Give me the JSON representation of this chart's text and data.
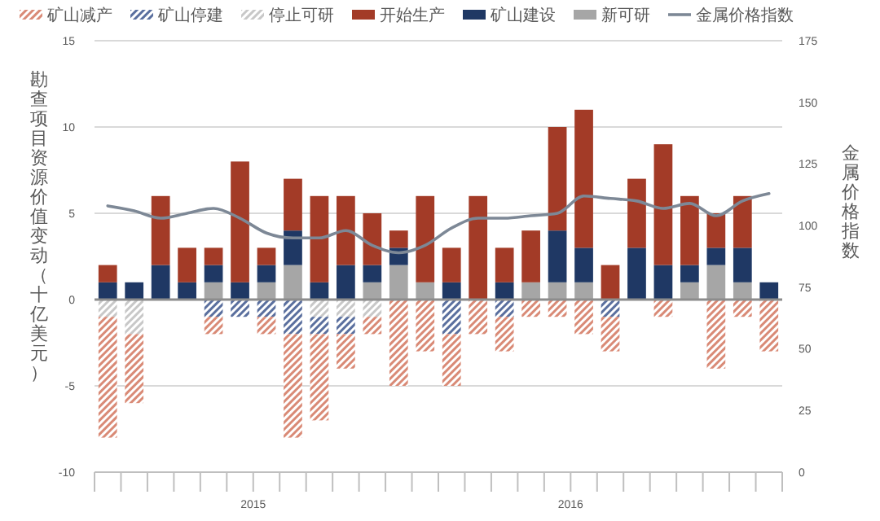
{
  "chart_data": {
    "type": "bar",
    "stacked": true,
    "ylabel": "勘查项目资源价值变动（十亿美元）",
    "y2label": "金属价格指数",
    "categories": [
      null,
      null,
      null,
      null,
      null,
      null,
      null,
      null,
      null,
      null,
      null,
      null,
      null,
      null,
      null,
      null,
      null,
      null,
      null,
      null,
      null,
      null,
      null,
      null,
      null,
      null
    ],
    "annotations": [
      "2015",
      "2016"
    ],
    "ylim": [
      -10,
      15
    ],
    "yticks": [
      -10,
      -5,
      0,
      5,
      10,
      15
    ],
    "y2lim": [
      0,
      175
    ],
    "y2ticks": [
      0,
      25,
      50,
      75,
      100,
      125,
      150,
      175
    ],
    "grid": "y",
    "legend": "top",
    "series": [
      {
        "name": "新可研",
        "color": "#a6a6a6",
        "values": [
          null,
          null,
          null,
          null,
          1,
          null,
          1,
          2,
          null,
          null,
          1,
          2,
          1,
          null,
          null,
          null,
          1,
          1,
          1,
          null,
          null,
          null,
          1,
          2,
          1,
          null
        ]
      },
      {
        "name": "矿山建设",
        "color": "#1f3864",
        "values": [
          1,
          1,
          2,
          1,
          1,
          1,
          1,
          2,
          1,
          2,
          1,
          1,
          null,
          1,
          null,
          1,
          null,
          3,
          2,
          null,
          3,
          2,
          1,
          1,
          2,
          1
        ]
      },
      {
        "name": "开始生产",
        "color": "#a33b27",
        "values": [
          1,
          null,
          4,
          2,
          1,
          7,
          1,
          3,
          5,
          4,
          3,
          1,
          5,
          2,
          6,
          2,
          3,
          6,
          8,
          2,
          4,
          7,
          4,
          2,
          3,
          null
        ]
      },
      {
        "name": "停止可研",
        "color": "#c8c8c8",
        "values": [
          -1,
          -2,
          null,
          null,
          null,
          null,
          null,
          null,
          -1,
          -1,
          -1,
          null,
          null,
          null,
          null,
          null,
          null,
          null,
          null,
          null,
          null,
          null,
          null,
          null,
          null,
          null
        ]
      },
      {
        "name": "矿山停建",
        "color": "#5a6f9e",
        "values": [
          null,
          null,
          null,
          null,
          -1,
          -1,
          -1,
          -2,
          -1,
          -1,
          null,
          null,
          null,
          -2,
          null,
          -1,
          null,
          null,
          null,
          -1,
          null,
          null,
          null,
          null,
          null,
          null
        ]
      },
      {
        "name": "矿山减产",
        "color": "#d98a76",
        "values": [
          -7,
          -4,
          null,
          null,
          -1,
          null,
          -1,
          -6,
          -5,
          -2,
          -1,
          -5,
          -3,
          -3,
          -2,
          -2,
          -1,
          -1,
          -2,
          -2,
          null,
          -1,
          null,
          -4,
          -1,
          -3
        ]
      },
      {
        "name": "金属价格指数",
        "type": "line",
        "axis": "y2",
        "color": "#7d8896",
        "values": [
          108,
          106,
          103,
          105,
          107,
          103,
          97,
          95,
          95,
          98,
          92,
          89,
          92,
          99,
          103,
          103,
          104,
          105,
          112,
          111,
          110,
          107,
          109,
          104,
          110,
          113
        ]
      }
    ]
  }
}
